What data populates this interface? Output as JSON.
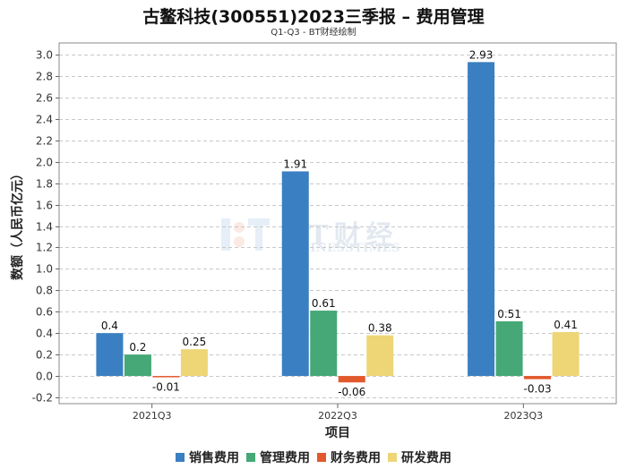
{
  "header": {
    "title": "古鳌科技(300551)2023三季报 – 费用管理",
    "subtitle": "Q1-Q3 - BT财经绘制"
  },
  "watermark": {
    "brand_cn": "BT财经",
    "brand_en": "BUSINESSTIMES"
  },
  "chart_data": {
    "type": "bar",
    "title": "古鳌科技(300551)2023三季报 – 费用管理",
    "subtitle": "Q1-Q3 - BT财经绘制",
    "xlabel": "项目",
    "ylabel": "数额（人民币亿元）",
    "ylim": [
      -0.2,
      3.0
    ],
    "ytick_step": 0.2,
    "yticks": [
      "-0.2",
      "0.0",
      "0.2",
      "0.4",
      "0.6",
      "0.8",
      "1.0",
      "1.2",
      "1.4",
      "1.6",
      "1.8",
      "2.0",
      "2.2",
      "2.4",
      "2.6",
      "2.8",
      "3.0"
    ],
    "grid": true,
    "legend_position": "bottom",
    "categories": [
      "2021Q3",
      "2022Q3",
      "2023Q3"
    ],
    "series": [
      {
        "name": "销售费用",
        "color": "#3a7fc1",
        "values": [
          0.4,
          1.91,
          2.93
        ],
        "labels": [
          "0.4",
          "1.91",
          "2.93"
        ]
      },
      {
        "name": "管理费用",
        "color": "#45a876",
        "values": [
          0.2,
          0.61,
          0.51
        ],
        "labels": [
          "0.2",
          "0.61",
          "0.51"
        ]
      },
      {
        "name": "财务费用",
        "color": "#e2592c",
        "values": [
          -0.01,
          -0.06,
          -0.03
        ],
        "labels": [
          "-0.01",
          "-0.06",
          "-0.03"
        ]
      },
      {
        "name": "研发费用",
        "color": "#eed677",
        "values": [
          0.25,
          0.38,
          0.41
        ],
        "labels": [
          "0.25",
          "0.38",
          "0.41"
        ]
      }
    ]
  }
}
